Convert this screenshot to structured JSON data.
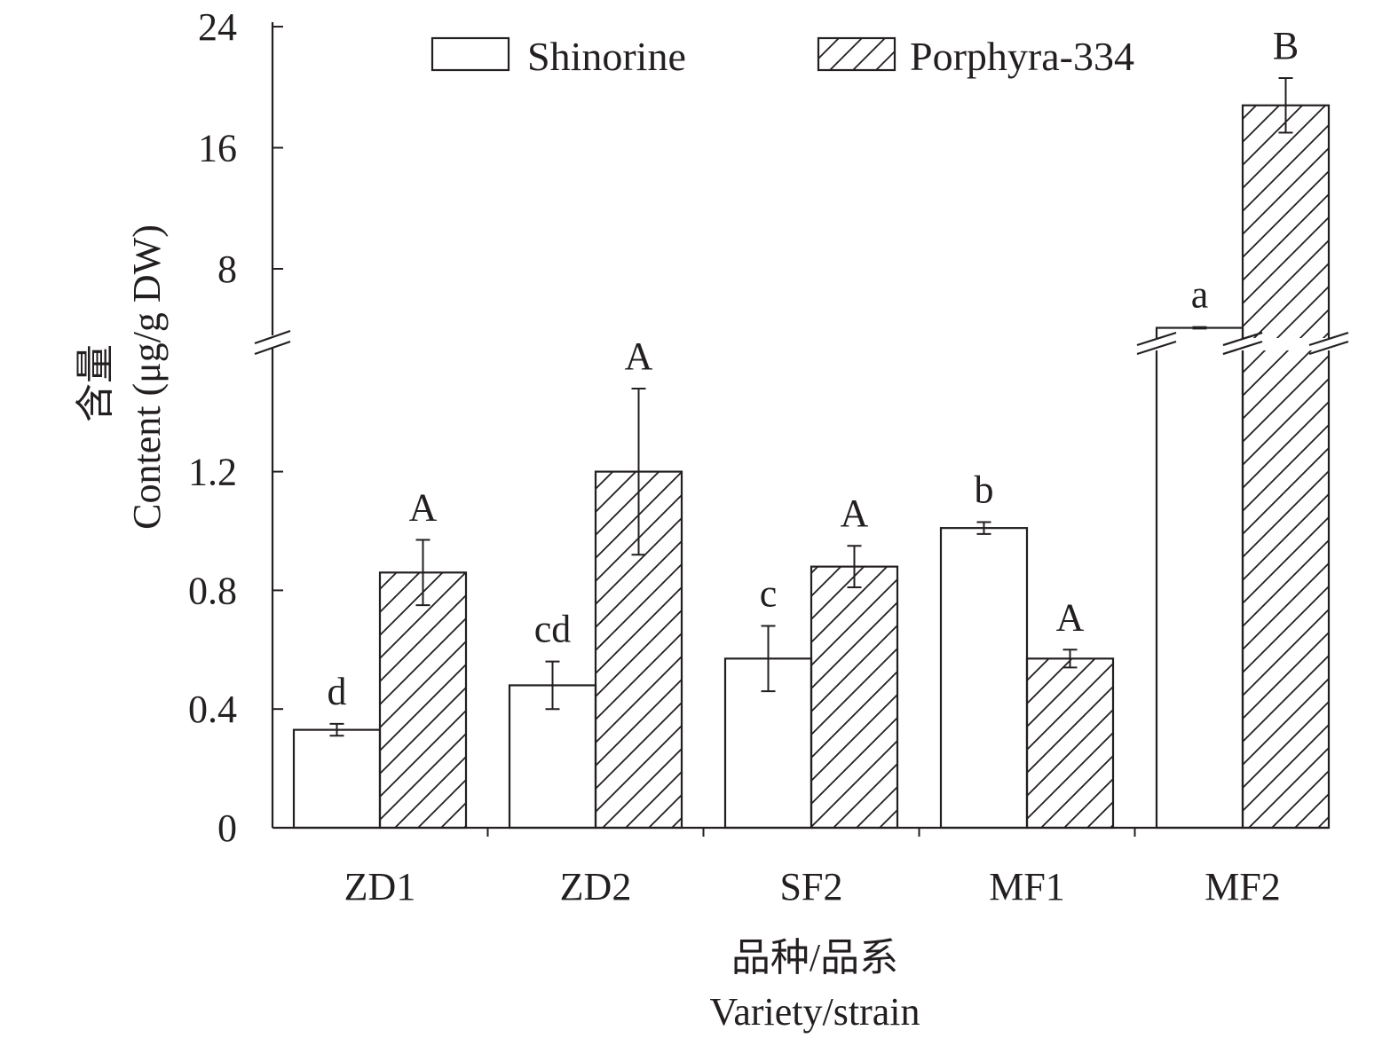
{
  "chart_data": {
    "type": "bar",
    "title": "",
    "categories": [
      "ZD1",
      "ZD2",
      "SF2",
      "MF1",
      "MF2"
    ],
    "series": [
      {
        "name": "Shinorine",
        "pattern": "none",
        "values": [
          0.33,
          0.48,
          0.57,
          1.01,
          4.1
        ],
        "errors": [
          0.02,
          0.08,
          0.11,
          0.02,
          0.05
        ],
        "letters": [
          "d",
          "cd",
          "c",
          "b",
          "a"
        ]
      },
      {
        "name": "Porphyra-334",
        "pattern": "hatch",
        "values": [
          0.86,
          1.2,
          0.88,
          0.57,
          18.8
        ],
        "errors": [
          0.11,
          0.28,
          0.07,
          0.03,
          1.8
        ],
        "letters": [
          "A",
          "A",
          "A",
          "A",
          "B"
        ]
      }
    ],
    "ylabel_cn": "含量",
    "ylabel": "Content (μg/g DW)",
    "xlabel_cn": "品种/品系",
    "xlabel": "Variety/strain",
    "y_axis_break": true,
    "ylim_lower": [
      0,
      1.6
    ],
    "ylim_upper": [
      3.9,
      24
    ],
    "yticks_lower": [
      "0",
      "0.4",
      "0.8",
      "1.2"
    ],
    "yticks_lower_values": [
      0,
      0.4,
      0.8,
      1.2
    ],
    "yticks_upper": [
      "8",
      "16",
      "24"
    ],
    "yticks_upper_values": [
      8,
      16,
      24
    ],
    "legend_position": "top",
    "grid": false,
    "colors": {
      "line": "#231f20",
      "fill": "#ffffff"
    }
  }
}
